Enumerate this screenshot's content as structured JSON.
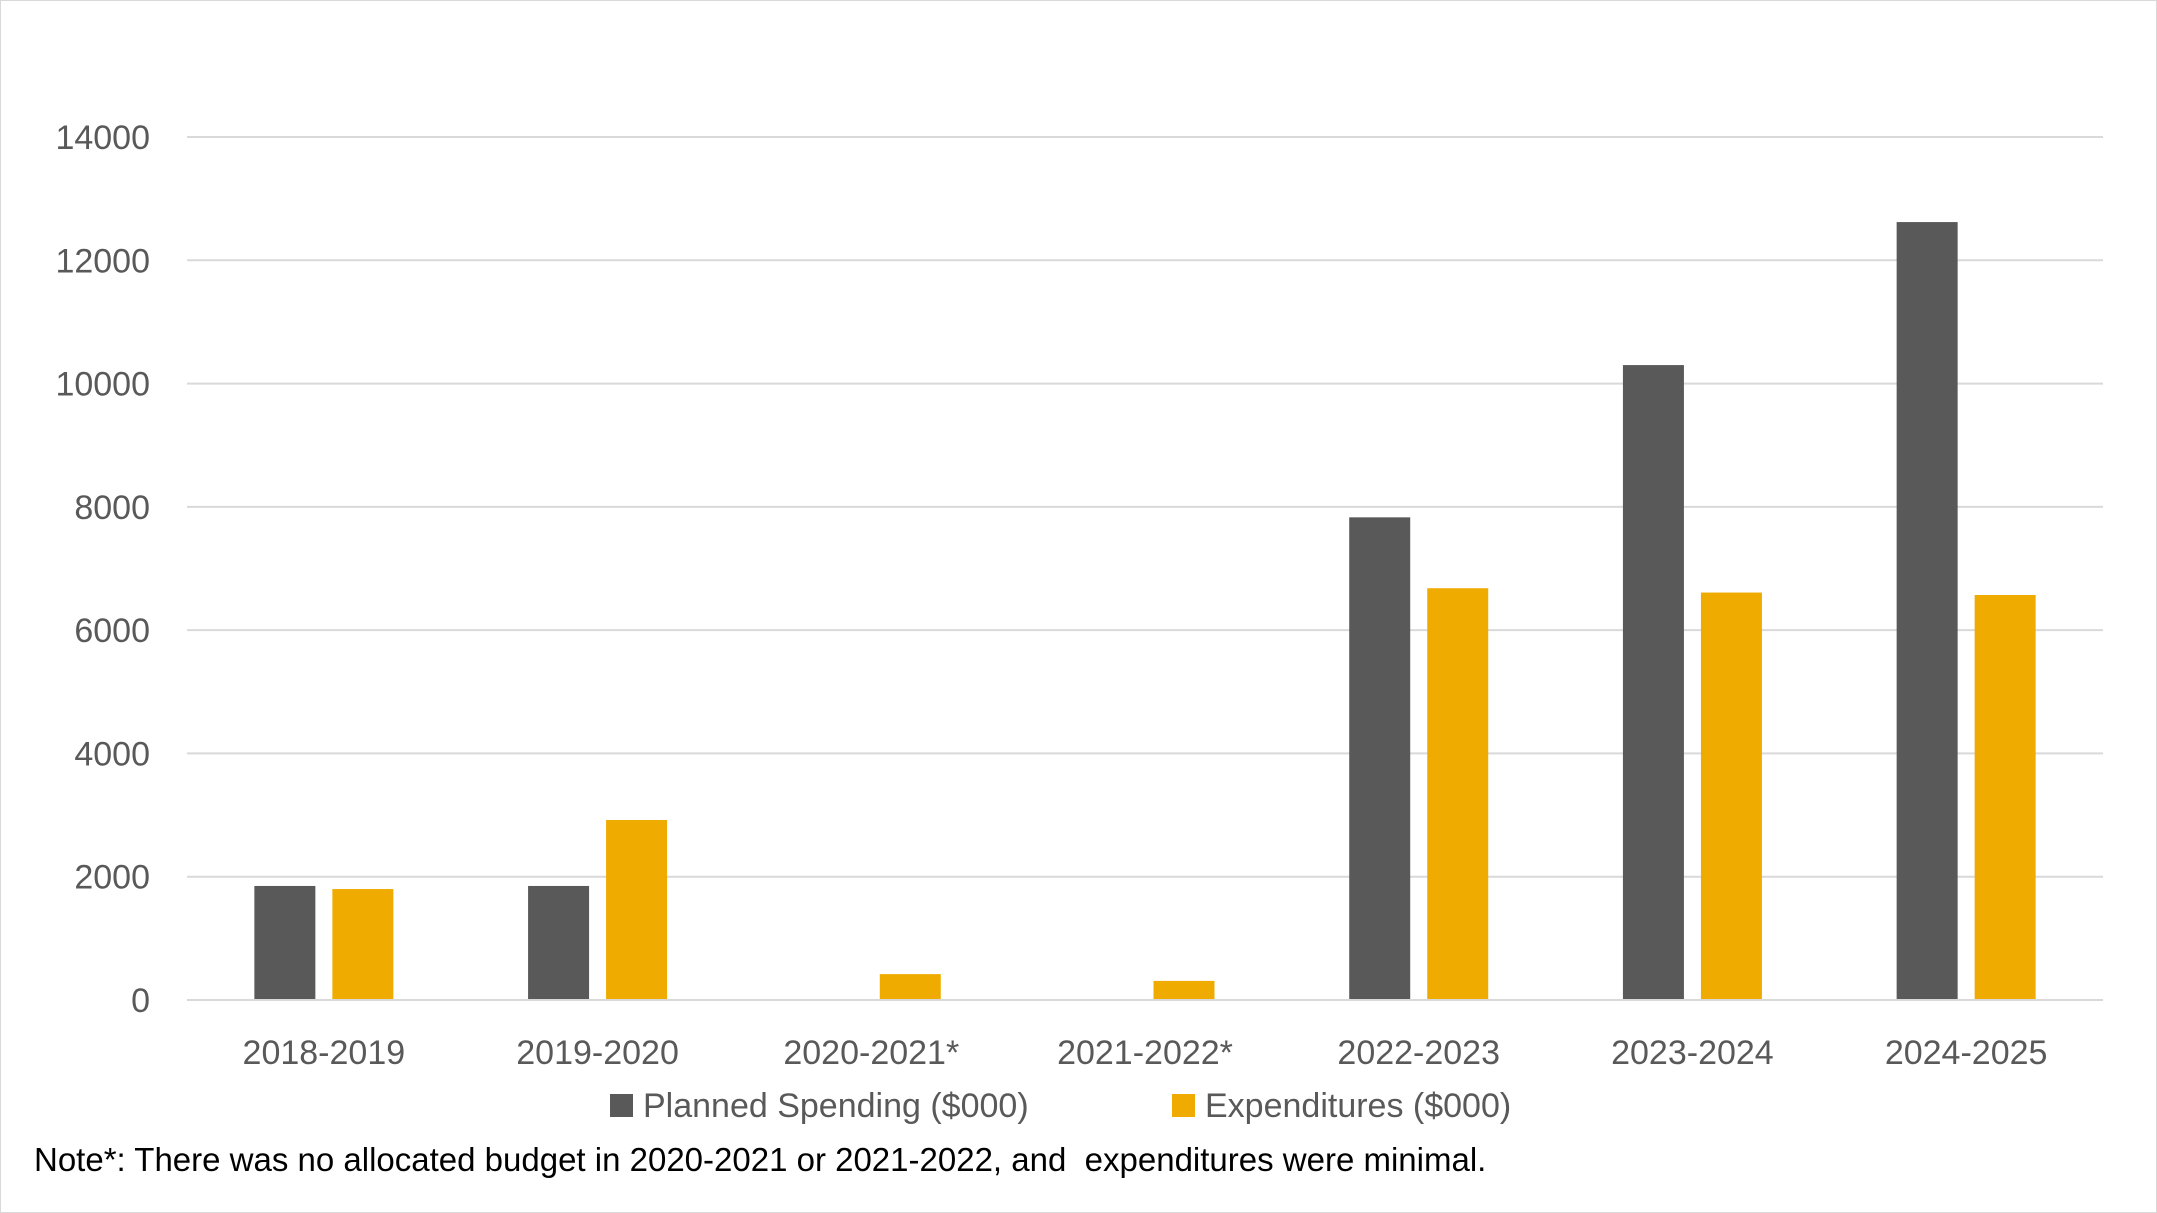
{
  "chart_data": {
    "type": "bar",
    "title": "",
    "xlabel": "",
    "ylabel": "",
    "categories": [
      "2018-2019",
      "2019-2020",
      "2020-2021*",
      "2021-2022*",
      "2022-2023",
      "2023-2024",
      "2024-2025"
    ],
    "series": [
      {
        "name": "Planned Spending ($000)",
        "color": "#595959",
        "values": [
          1850,
          1850,
          0,
          0,
          7830,
          10300,
          12620
        ]
      },
      {
        "name": "Expenditures ($000)",
        "color": "#F0AB00",
        "values": [
          1800,
          2920,
          420,
          310,
          6680,
          6610,
          6570
        ]
      }
    ],
    "ylim": [
      0,
      14000
    ],
    "yticks": [
      0,
      2000,
      4000,
      6000,
      8000,
      10000,
      12000,
      14000
    ],
    "ytick_labels": [
      "0",
      "2000",
      "4000",
      "6000",
      "8000",
      "10000",
      "12000",
      "14000"
    ],
    "grid": true,
    "gridline_color": "#d9d9d9",
    "legend_position": "bottom"
  },
  "note": "Note*: There was no allocated budget in 2020-2021 or 2021-2022, and  expenditures were minimal."
}
